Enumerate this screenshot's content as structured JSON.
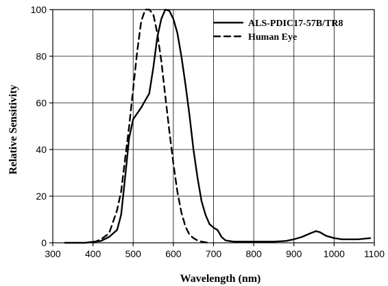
{
  "chart_data": {
    "type": "line",
    "title": "",
    "xlabel": "Wavelength (nm)",
    "ylabel": "Relative Sensitivity",
    "xlim": [
      300,
      1100
    ],
    "ylim": [
      0,
      100
    ],
    "xticks": [
      300,
      400,
      500,
      600,
      700,
      800,
      900,
      1000,
      1100
    ],
    "yticks": [
      0,
      20,
      40,
      60,
      80,
      100
    ],
    "grid": true,
    "legend": "top-right",
    "series": [
      {
        "name": "ALS-PDIC17-57B/TR8",
        "style": "solid",
        "color": "#000000",
        "points": [
          [
            330,
            0
          ],
          [
            380,
            0
          ],
          [
            420,
            0.8
          ],
          [
            440,
            2.5
          ],
          [
            460,
            5.5
          ],
          [
            470,
            12
          ],
          [
            480,
            28
          ],
          [
            490,
            45
          ],
          [
            500,
            53
          ],
          [
            520,
            58
          ],
          [
            530,
            61
          ],
          [
            540,
            64
          ],
          [
            550,
            75
          ],
          [
            560,
            88
          ],
          [
            570,
            96
          ],
          [
            580,
            100
          ],
          [
            590,
            99.5
          ],
          [
            600,
            96
          ],
          [
            610,
            90
          ],
          [
            620,
            80
          ],
          [
            630,
            68
          ],
          [
            640,
            55
          ],
          [
            650,
            40
          ],
          [
            660,
            28
          ],
          [
            670,
            18
          ],
          [
            680,
            12
          ],
          [
            690,
            8
          ],
          [
            700,
            6.5
          ],
          [
            710,
            5.5
          ],
          [
            720,
            2.5
          ],
          [
            730,
            1
          ],
          [
            750,
            0.5
          ],
          [
            800,
            0.5
          ],
          [
            850,
            0.5
          ],
          [
            880,
            0.8
          ],
          [
            900,
            1.5
          ],
          [
            920,
            2.5
          ],
          [
            940,
            4
          ],
          [
            955,
            5
          ],
          [
            965,
            4.5
          ],
          [
            980,
            3
          ],
          [
            1000,
            2
          ],
          [
            1020,
            1.5
          ],
          [
            1060,
            1.5
          ],
          [
            1090,
            2
          ]
        ]
      },
      {
        "name": "Human Eye",
        "style": "dashed",
        "color": "#000000",
        "points": [
          [
            400,
            0
          ],
          [
            420,
            1.5
          ],
          [
            440,
            4
          ],
          [
            460,
            14
          ],
          [
            470,
            22
          ],
          [
            480,
            36
          ],
          [
            490,
            50
          ],
          [
            500,
            66
          ],
          [
            510,
            82
          ],
          [
            520,
            95
          ],
          [
            530,
            100
          ],
          [
            540,
            100
          ],
          [
            550,
            98
          ],
          [
            560,
            90
          ],
          [
            570,
            78
          ],
          [
            580,
            63
          ],
          [
            590,
            48
          ],
          [
            600,
            34
          ],
          [
            610,
            22
          ],
          [
            620,
            13
          ],
          [
            630,
            7
          ],
          [
            640,
            3.5
          ],
          [
            650,
            2
          ],
          [
            660,
            1
          ],
          [
            670,
            0.5
          ],
          [
            680,
            0.2
          ],
          [
            690,
            0
          ]
        ]
      }
    ]
  }
}
